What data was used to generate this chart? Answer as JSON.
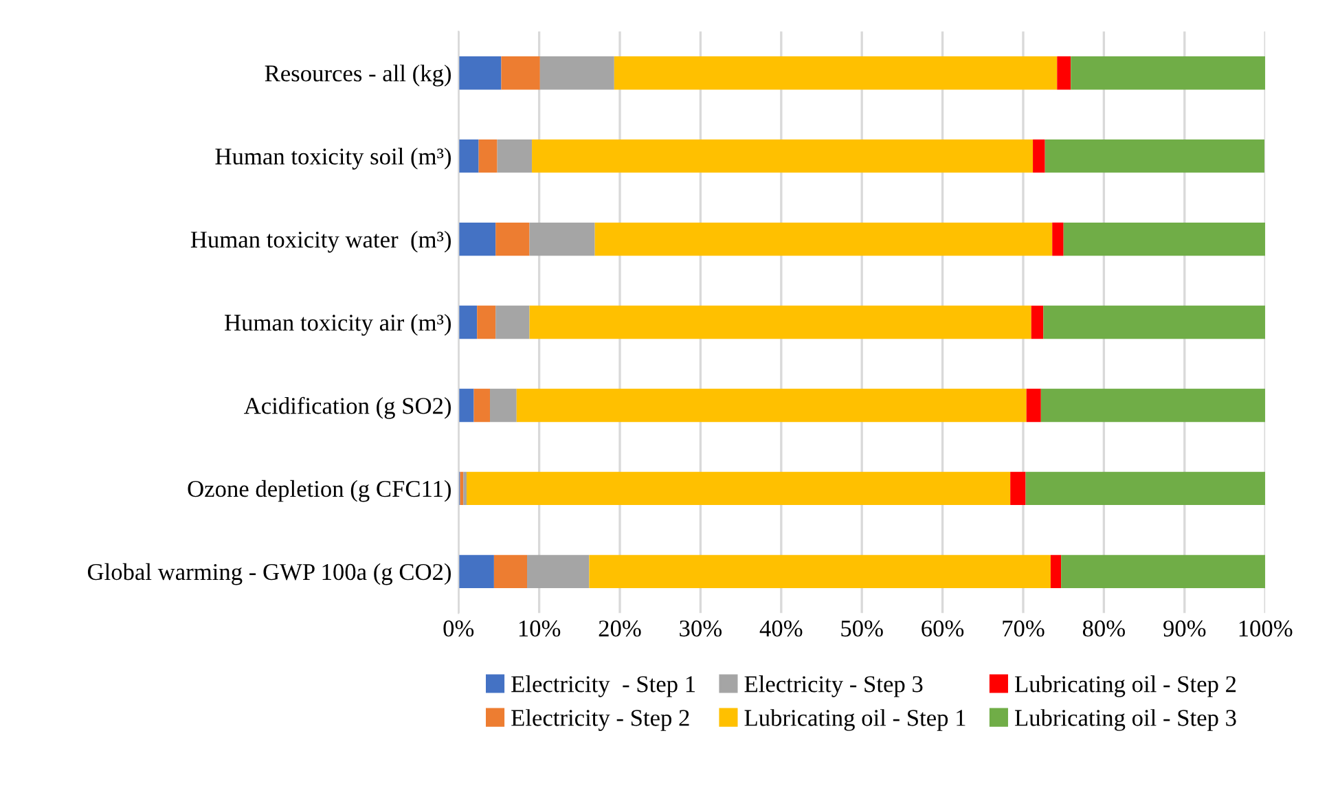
{
  "chart_data": {
    "type": "bar",
    "orientation": "horizontal",
    "stacked": true,
    "categories": [
      "Resources - all (kg)",
      "Human toxicity soil (m³)",
      "Human toxicity water  (m³)",
      "Human toxicity air (m³)",
      "Acidification (g SO2)",
      "Ozone depletion (g CFC11)",
      "Global warming - GWP 100a (g CO2)"
    ],
    "series": [
      {
        "name": "Electricity  - Step 1",
        "color": "#4472c4",
        "values": [
          5.3,
          2.5,
          4.6,
          2.3,
          1.9,
          0.2,
          4.4
        ]
      },
      {
        "name": "Electricity - Step 2",
        "color": "#ed7d31",
        "values": [
          4.8,
          2.3,
          4.2,
          2.3,
          2.0,
          0.4,
          4.1
        ]
      },
      {
        "name": "Electricity - Step 3",
        "color": "#a5a5a5",
        "values": [
          9.2,
          4.3,
          8.1,
          4.2,
          3.3,
          0.4,
          7.7
        ]
      },
      {
        "name": "Lubricating oil - Step 1",
        "color": "#ffc000",
        "values": [
          54.9,
          62.1,
          56.7,
          62.2,
          63.2,
          67.4,
          57.2
        ]
      },
      {
        "name": "Lubricating oil - Step 2",
        "color": "#ff0000",
        "values": [
          1.7,
          1.5,
          1.4,
          1.5,
          1.8,
          1.9,
          1.3
        ]
      },
      {
        "name": "Lubricating oil - Step 3",
        "color": "#70ad47",
        "values": [
          24.1,
          27.2,
          25.0,
          27.5,
          27.8,
          29.7,
          25.3
        ]
      }
    ],
    "xlim": [
      0,
      100
    ],
    "xticks": [
      {
        "value": 0,
        "label": "0%"
      },
      {
        "value": 10,
        "label": "10%"
      },
      {
        "value": 20,
        "label": "20%"
      },
      {
        "value": 30,
        "label": "30%"
      },
      {
        "value": 40,
        "label": "40%"
      },
      {
        "value": 50,
        "label": "50%"
      },
      {
        "value": 60,
        "label": "60%"
      },
      {
        "value": 70,
        "label": "70%"
      },
      {
        "value": 80,
        "label": "80%"
      },
      {
        "value": 90,
        "label": "90%"
      },
      {
        "value": 100,
        "label": "100%"
      }
    ],
    "grid": "x",
    "legend": "bottom"
  }
}
